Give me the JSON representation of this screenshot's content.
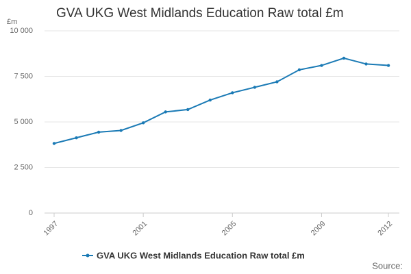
{
  "chart_data": {
    "type": "line",
    "title": "GVA UKG West Midlands Education Raw total £m",
    "y_label": "£m",
    "source": "Source:",
    "x": [
      1997,
      1998,
      1999,
      2000,
      2001,
      2002,
      2003,
      2004,
      2005,
      2006,
      2007,
      2008,
      2009,
      2010,
      2011,
      2012
    ],
    "series": [
      {
        "name": "GVA UKG West Midlands Education Raw total £m",
        "color": "#1a7ab5",
        "values": [
          3820,
          4130,
          4440,
          4530,
          4950,
          5550,
          5680,
          6200,
          6600,
          6900,
          7200,
          7860,
          8100,
          8500,
          8180,
          8100
        ]
      }
    ],
    "xlim": [
      1996.57,
      2012.49
    ],
    "xticks": [
      1997,
      2001,
      2005,
      2009,
      2012
    ],
    "ylim": [
      0,
      10000
    ],
    "yticks": [
      0,
      {
        "value": 2500,
        "label": "2 500"
      },
      {
        "value": 5000,
        "label": "5 000"
      },
      {
        "value": 7500,
        "label": "7 500"
      },
      {
        "value": 10000,
        "label": "10 000"
      }
    ],
    "grid": true
  }
}
